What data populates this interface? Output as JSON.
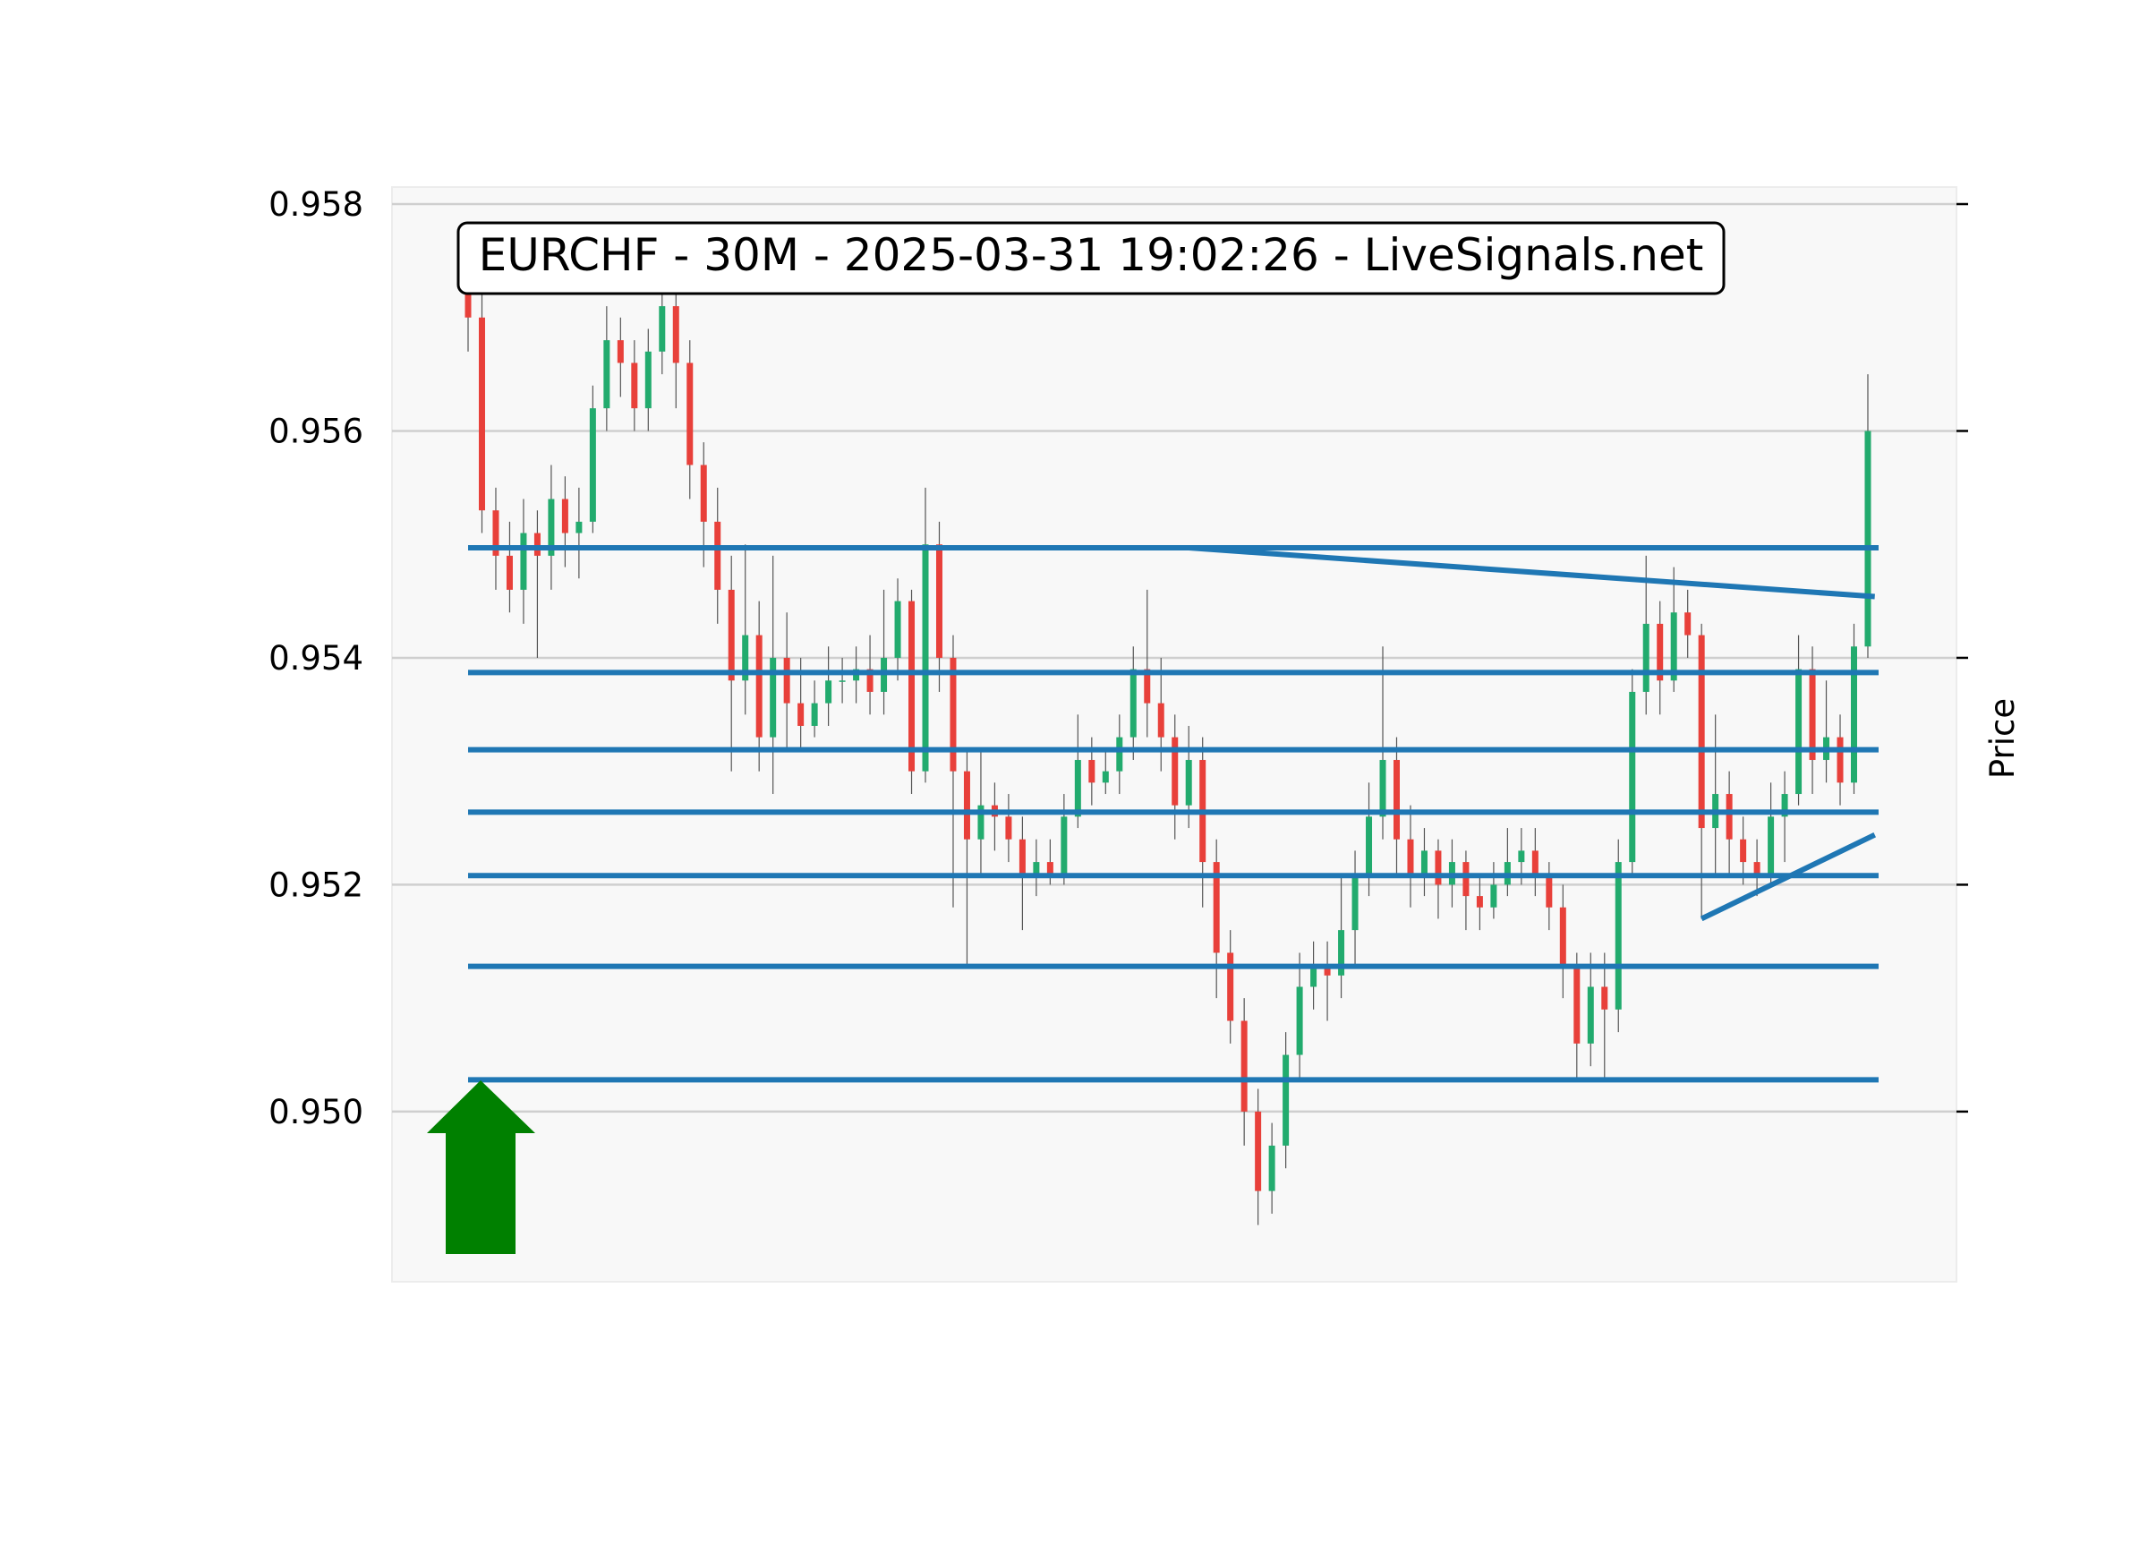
{
  "chart_data": {
    "type": "candlestick",
    "title": "EURCHF - 30M - 2025-03-31 19:02:26 - LiveSignals.net",
    "y_label": "Price",
    "ylim": [
      0.9485,
      0.95815
    ],
    "yticks": [
      {
        "value": 0.95,
        "label": "0.950"
      },
      {
        "value": 0.952,
        "label": "0.952"
      },
      {
        "value": 0.954,
        "label": "0.954"
      },
      {
        "value": 0.956,
        "label": "0.956"
      },
      {
        "value": 0.958,
        "label": "0.958"
      }
    ],
    "grid": true,
    "up_color": "#22ab6e",
    "down_color": "#e8403a",
    "line_color": "#1f77b4",
    "open": [
      0.9573,
      0.957,
      0.9553,
      0.9549,
      0.9546,
      0.9551,
      0.9549,
      0.9554,
      0.9551,
      0.9552,
      0.9562,
      0.9568,
      0.9566,
      0.9562,
      0.9567,
      0.9571,
      0.9566,
      0.9557,
      0.9552,
      0.9546,
      0.9538,
      0.9542,
      0.9533,
      0.954,
      0.9536,
      0.9534,
      0.9536,
      0.9538,
      0.9538,
      0.9539,
      0.9537,
      0.954,
      0.9545,
      0.953,
      0.955,
      0.954,
      0.953,
      0.9524,
      0.9527,
      0.9526,
      0.9524,
      0.9521,
      0.9522,
      0.9521,
      0.9526,
      0.9531,
      0.9529,
      0.953,
      0.9533,
      0.9539,
      0.9536,
      0.9533,
      0.9527,
      0.9531,
      0.9522,
      0.9514,
      0.9508,
      0.95,
      0.9493,
      0.9497,
      0.9505,
      0.9511,
      0.9513,
      0.9512,
      0.9516,
      0.9521,
      0.9526,
      0.9531,
      0.9524,
      0.9521,
      0.9523,
      0.952,
      0.9522,
      0.9519,
      0.9518,
      0.952,
      0.9522,
      0.9523,
      0.9521,
      0.9518,
      0.9513,
      0.9506,
      0.9511,
      0.9509,
      0.9522,
      0.9537,
      0.9543,
      0.9538,
      0.9544,
      0.9542,
      0.9525,
      0.9528,
      0.9524,
      0.9522,
      0.9521,
      0.9526,
      0.9528,
      0.9539,
      0.9531,
      0.9533,
      0.9529,
      0.9541
    ],
    "high": [
      0.9576,
      0.9572,
      0.9555,
      0.9552,
      0.9554,
      0.9553,
      0.9557,
      0.9556,
      0.9555,
      0.9564,
      0.9571,
      0.957,
      0.9568,
      0.9569,
      0.9575,
      0.9573,
      0.9568,
      0.9559,
      0.9555,
      0.9549,
      0.955,
      0.9545,
      0.9549,
      0.9544,
      0.954,
      0.9538,
      0.9541,
      0.954,
      0.9541,
      0.9542,
      0.9546,
      0.9547,
      0.9546,
      0.9555,
      0.9552,
      0.9542,
      0.9532,
      0.9532,
      0.9529,
      0.9528,
      0.9526,
      0.9524,
      0.9524,
      0.9528,
      0.9535,
      0.9533,
      0.9532,
      0.9535,
      0.9541,
      0.9546,
      0.954,
      0.9535,
      0.9534,
      0.9533,
      0.9524,
      0.9516,
      0.951,
      0.9502,
      0.9499,
      0.9507,
      0.9514,
      0.9515,
      0.9515,
      0.9521,
      0.9523,
      0.9529,
      0.9541,
      0.9533,
      0.9527,
      0.9525,
      0.9524,
      0.9524,
      0.9523,
      0.9521,
      0.9522,
      0.9525,
      0.9525,
      0.9525,
      0.9522,
      0.952,
      0.9514,
      0.9514,
      0.9514,
      0.9524,
      0.9539,
      0.9549,
      0.9545,
      0.9548,
      0.9546,
      0.9543,
      0.9535,
      0.953,
      0.9526,
      0.9524,
      0.9529,
      0.953,
      0.9542,
      0.9541,
      0.9538,
      0.9535,
      0.9543,
      0.9565
    ],
    "low": [
      0.9567,
      0.9551,
      0.9546,
      0.9544,
      0.9543,
      0.954,
      0.9546,
      0.9548,
      0.9547,
      0.9551,
      0.956,
      0.9563,
      0.956,
      0.956,
      0.9565,
      0.9562,
      0.9554,
      0.9548,
      0.9543,
      0.953,
      0.9535,
      0.953,
      0.9528,
      0.9532,
      0.9532,
      0.9533,
      0.9534,
      0.9536,
      0.9536,
      0.9535,
      0.9535,
      0.9538,
      0.9528,
      0.9529,
      0.9537,
      0.9518,
      0.9513,
      0.9521,
      0.9523,
      0.9522,
      0.9516,
      0.9519,
      0.952,
      0.952,
      0.9525,
      0.9527,
      0.9528,
      0.9528,
      0.9531,
      0.9533,
      0.953,
      0.9524,
      0.9525,
      0.9518,
      0.951,
      0.9506,
      0.9497,
      0.949,
      0.9491,
      0.9495,
      0.9503,
      0.9509,
      0.9508,
      0.951,
      0.9513,
      0.9519,
      0.9524,
      0.9521,
      0.9518,
      0.9519,
      0.9517,
      0.9518,
      0.9516,
      0.9516,
      0.9517,
      0.9519,
      0.952,
      0.9519,
      0.9516,
      0.951,
      0.9503,
      0.9504,
      0.9503,
      0.9507,
      0.9521,
      0.9535,
      0.9535,
      0.9537,
      0.954,
      0.9517,
      0.9521,
      0.9521,
      0.952,
      0.9519,
      0.952,
      0.9522,
      0.9527,
      0.9528,
      0.9529,
      0.9527,
      0.9528,
      0.954
    ],
    "close": [
      0.957,
      0.9553,
      0.9549,
      0.9546,
      0.9551,
      0.9549,
      0.9554,
      0.9551,
      0.9552,
      0.9562,
      0.9568,
      0.9566,
      0.9562,
      0.9567,
      0.9571,
      0.9566,
      0.9557,
      0.9552,
      0.9546,
      0.9538,
      0.9542,
      0.9533,
      0.954,
      0.9536,
      0.9534,
      0.9536,
      0.9538,
      0.9538,
      0.9539,
      0.9537,
      0.954,
      0.9545,
      0.953,
      0.955,
      0.954,
      0.953,
      0.9524,
      0.9527,
      0.9526,
      0.9524,
      0.9521,
      0.9522,
      0.9521,
      0.9526,
      0.9531,
      0.9529,
      0.953,
      0.9533,
      0.9539,
      0.9536,
      0.9533,
      0.9527,
      0.9531,
      0.9522,
      0.9514,
      0.9508,
      0.95,
      0.9493,
      0.9497,
      0.9505,
      0.9511,
      0.9513,
      0.9512,
      0.9516,
      0.9521,
      0.9526,
      0.9531,
      0.9524,
      0.9521,
      0.9523,
      0.952,
      0.9522,
      0.9519,
      0.9518,
      0.952,
      0.9522,
      0.9523,
      0.9521,
      0.9518,
      0.9513,
      0.9506,
      0.9511,
      0.9509,
      0.9522,
      0.9537,
      0.9543,
      0.9538,
      0.9544,
      0.9542,
      0.9525,
      0.9528,
      0.9524,
      0.9522,
      0.9521,
      0.9526,
      0.9528,
      0.9539,
      0.9531,
      0.9533,
      0.9529,
      0.9541,
      0.956
    ],
    "levels": [
      0.95497,
      0.95387,
      0.95319,
      0.95264,
      0.95208,
      0.95128,
      0.95028
    ],
    "trendlines": [
      {
        "x": [
          52,
          101.5
        ],
        "y": [
          0.95497,
          0.95454
        ]
      },
      {
        "x": [
          89,
          101.5
        ],
        "y": [
          0.9517,
          0.95244
        ]
      }
    ]
  }
}
